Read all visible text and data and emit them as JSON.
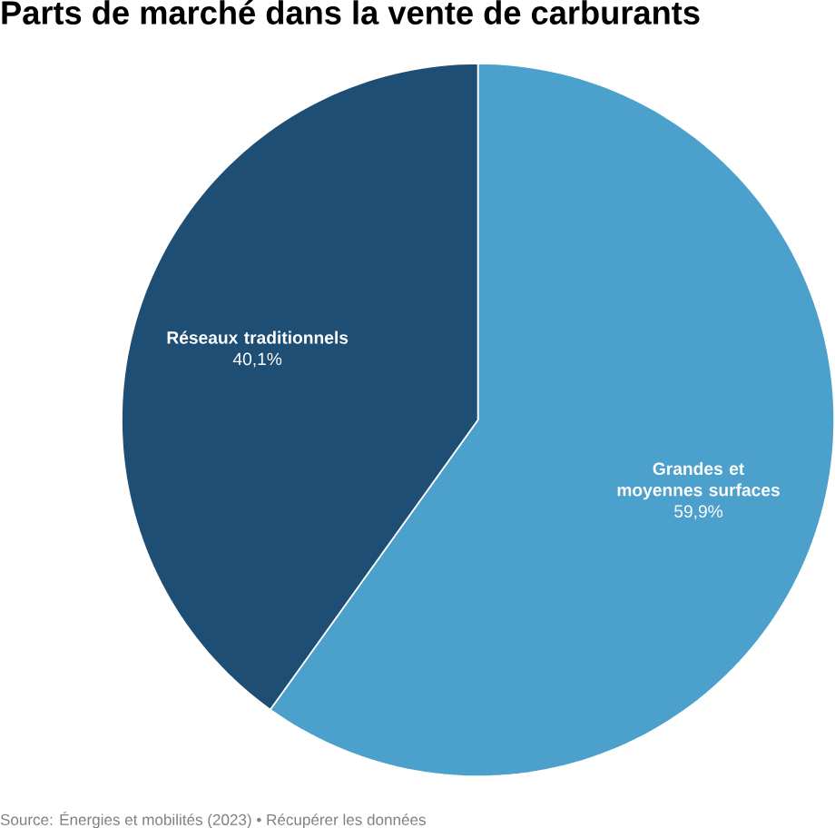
{
  "chart_data": {
    "type": "pie",
    "title": "Parts de marché dans la vente de carburants",
    "categories": [
      "Grandes et moyennes surfaces",
      "Réseaux traditionnels"
    ],
    "values": [
      59.9,
      40.1
    ],
    "value_labels": [
      "59,9%",
      "40,1%"
    ],
    "colors": [
      "#4ba0cc",
      "#1f4e75"
    ],
    "annotations": [
      "Source: Énergies et mobilités (2023) • Récupérer les données"
    ]
  }
}
